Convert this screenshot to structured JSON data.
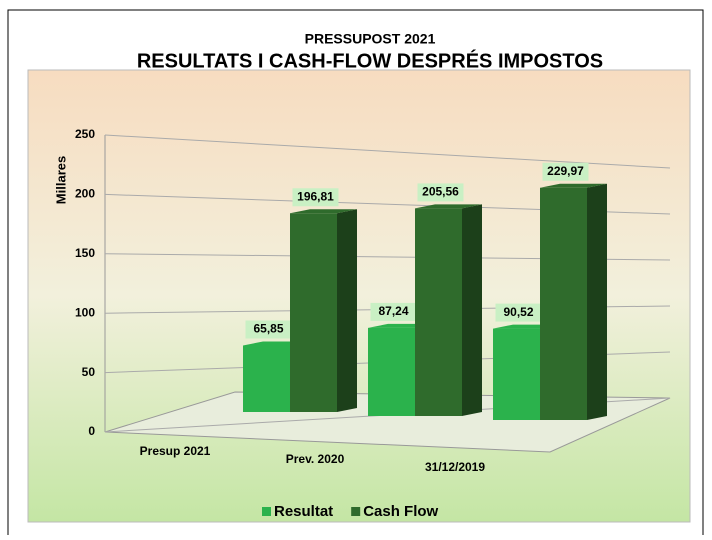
{
  "chart_data": {
    "type": "bar3d",
    "subtitle": "PRESSUPOST  2021",
    "title": "RESULTATS I CASH-FLOW DESPRÉS IMPOSTOS",
    "y_label": "Millares",
    "categories": [
      "Presup 2021",
      "Prev. 2020",
      "31/12/2019"
    ],
    "series": [
      {
        "name": "Resultat",
        "color": "#2bb24c",
        "values": [
          65.85,
          87.24,
          90.52
        ],
        "value_labels": [
          "65,85",
          "87,24",
          "90,52"
        ]
      },
      {
        "name": "Cash Flow",
        "color": "#2f6b2c",
        "values": [
          196.81,
          205.56,
          229.97
        ],
        "value_labels": [
          "196,81",
          "205,56",
          "229,97"
        ]
      }
    ],
    "ylim": [
      0,
      250
    ],
    "yticks": [
      0,
      50,
      100,
      150,
      200,
      250
    ],
    "grid": true,
    "legend": "bottom"
  }
}
